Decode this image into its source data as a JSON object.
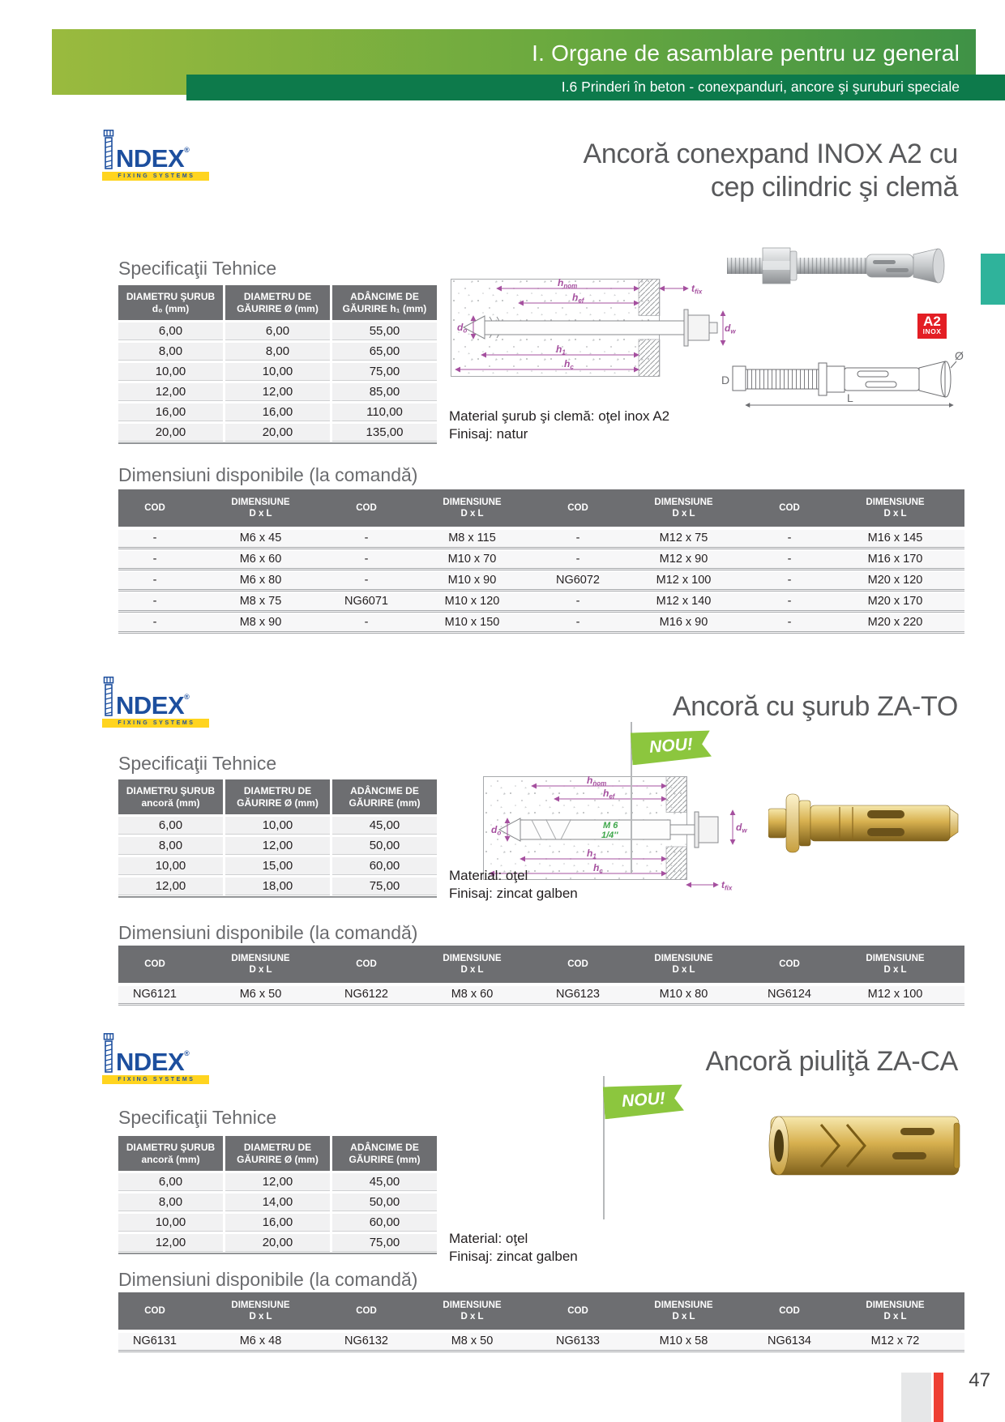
{
  "header": {
    "title": "I. Organe de asamblare pentru uz general",
    "subtitle": "I.6 Prinderi în beton - conexpanduri, ancore şi şuruburi speciale"
  },
  "logo": {
    "brand": "NDEX",
    "registered": "®",
    "tagline": "FIXING SYSTEMS"
  },
  "labels": {
    "specs": "Specificaţii Tehnice",
    "dims": "Dimensiuni disponibile (la comandă)",
    "nou": "NOU!",
    "cod": "COD",
    "dim1": "DIMENSIUNE",
    "dim2": "D x L"
  },
  "badge": {
    "line1": "A2",
    "line2": "INOX"
  },
  "diagram_labels": {
    "hnom": [
      "h",
      "nom"
    ],
    "hef": [
      "h",
      "ef"
    ],
    "tfix": [
      "t",
      "fix"
    ],
    "do": [
      "d",
      "o"
    ],
    "h1": [
      "h",
      "1"
    ],
    "hc": [
      "h",
      "c"
    ],
    "dw": [
      "d",
      "w"
    ],
    "D": "D",
    "L": "L",
    "diameter": "Ø",
    "thread_metric": "M 6",
    "thread_inch": "1/4''"
  },
  "colors": {
    "header_green_start": "#9aba3e",
    "header_green_end": "#3f9246",
    "subheader_green": "#0d7a4b",
    "side_tab_teal": "#2fb39b",
    "nou_green": "#8cc63e",
    "badge_red": "#e31e24",
    "index_blue": "#1d4f9e",
    "index_yellow": "#ffd41f",
    "table_header_gray": "#6d6e71",
    "row_gray": "#f1f1f2",
    "diagram_purple": "#a5509f"
  },
  "sections": [
    {
      "title_lines": [
        "Ancoră conexpand INOX A2 cu",
        "cep cilindric şi clemă"
      ],
      "material_lines": [
        "Material şurub şi clemă: oţel inox A2",
        "Finisaj: natur"
      ],
      "specs": {
        "headers": [
          [
            "DIAMETRU ŞURUB",
            "d₀ (mm)"
          ],
          [
            "DIAMETRU DE",
            "GĂURIRE Ø (mm)"
          ],
          [
            "ADÂNCIME DE",
            "GĂURIRE h₁ (mm)"
          ]
        ],
        "rows": [
          [
            "6,00",
            "6,00",
            "55,00"
          ],
          [
            "8,00",
            "8,00",
            "65,00"
          ],
          [
            "10,00",
            "10,00",
            "75,00"
          ],
          [
            "12,00",
            "12,00",
            "85,00"
          ],
          [
            "16,00",
            "16,00",
            "110,00"
          ],
          [
            "20,00",
            "20,00",
            "135,00"
          ]
        ]
      },
      "dims": {
        "rows": [
          [
            "-",
            "M6 x 45",
            "-",
            "M8 x 115",
            "-",
            "M12 x 75",
            "-",
            "M16 x 145"
          ],
          [
            "-",
            "M6 x 60",
            "-",
            "M10 x 70",
            "-",
            "M12 x 90",
            "-",
            "M16 x 170"
          ],
          [
            "-",
            "M6 x 80",
            "-",
            "M10 x 90",
            "NG6072",
            "M12 x 100",
            "-",
            "M20 x 120"
          ],
          [
            "-",
            "M8 x 75",
            "NG6071",
            "M10 x 120",
            "-",
            "M12 x 140",
            "-",
            "M20 x 170"
          ],
          [
            "-",
            "M8 x 90",
            "-",
            "M10 x 150",
            "-",
            "M16 x 90",
            "-",
            "M20 x 220"
          ]
        ]
      }
    },
    {
      "title_lines": [
        "Ancoră cu şurub ZA-TO"
      ],
      "material_lines": [
        "Material: oţel",
        "Finisaj: zincat galben"
      ],
      "specs": {
        "headers": [
          [
            "DIAMETRU ŞURUB",
            "ancoră (mm)"
          ],
          [
            "DIAMETRU DE",
            "GĂURIRE Ø (mm)"
          ],
          [
            "ADÂNCIME DE",
            "GĂURIRE (mm)"
          ]
        ],
        "rows": [
          [
            "6,00",
            "10,00",
            "45,00"
          ],
          [
            "8,00",
            "12,00",
            "50,00"
          ],
          [
            "10,00",
            "15,00",
            "60,00"
          ],
          [
            "12,00",
            "18,00",
            "75,00"
          ]
        ]
      },
      "dims": {
        "rows": [
          [
            "NG6121",
            "M6 x 50",
            "NG6122",
            "M8 x 60",
            "NG6123",
            "M10 x 80",
            "NG6124",
            "M12 x 100"
          ]
        ]
      }
    },
    {
      "title_lines": [
        "Ancoră piuliţă ZA-CA"
      ],
      "material_lines": [
        "Material: oţel",
        "Finisaj: zincat galben"
      ],
      "specs": {
        "headers": [
          [
            "DIAMETRU ŞURUB",
            "ancoră (mm)"
          ],
          [
            "DIAMETRU DE",
            "GĂURIRE Ø (mm)"
          ],
          [
            "ADÂNCIME DE",
            "GĂURIRE (mm)"
          ]
        ],
        "rows": [
          [
            "6,00",
            "12,00",
            "45,00"
          ],
          [
            "8,00",
            "14,00",
            "50,00"
          ],
          [
            "10,00",
            "16,00",
            "60,00"
          ],
          [
            "12,00",
            "20,00",
            "75,00"
          ]
        ]
      },
      "dims": {
        "rows": [
          [
            "NG6131",
            "M6 x 48",
            "NG6132",
            "M8 x 50",
            "NG6133",
            "M10 x 58",
            "NG6134",
            "M12 x 72"
          ]
        ]
      }
    }
  ],
  "footer": {
    "page_number": "47"
  }
}
